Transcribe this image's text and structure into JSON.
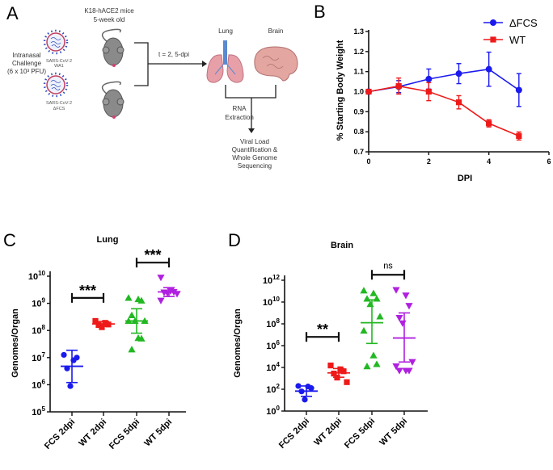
{
  "panel_labels": {
    "a": "A",
    "b": "B",
    "c": "C",
    "d": "D"
  },
  "diagram": {
    "mice_title": "K18-hACE2 mice",
    "mice_age": "5-week old",
    "challenge": [
      "Intranasal",
      "Challenge",
      "(6 x 10³ PFU)"
    ],
    "virus1": [
      "SARS-CoV-2",
      "WA1"
    ],
    "virus2": [
      "SARS-CoV-2",
      "ΔFCS"
    ],
    "timepoints": "t = 2, 5-dpi",
    "organ1": "Lung",
    "organ2": "Brain",
    "step1": [
      "RNA",
      "Extraction"
    ],
    "step2": [
      "Viral Load",
      "Quantification &",
      "Whole Genome",
      "Sequencing"
    ]
  },
  "chart_data": [
    {
      "id": "B",
      "type": "line",
      "title": "",
      "xlabel": "DPI",
      "ylabel": "% Starting Body Weight",
      "xlim": [
        0,
        6
      ],
      "ylim": [
        0.7,
        1.3
      ],
      "xticks": [
        0,
        2,
        4,
        6
      ],
      "yticks": [
        "0.7",
        "0.8",
        "0.9",
        "1.0",
        "1.1",
        "1.2",
        "1.3"
      ],
      "legend_position": "top-right",
      "x": [
        0,
        1,
        2,
        3,
        4,
        5
      ],
      "series": [
        {
          "name": "ΔFCS",
          "color": "#1a1aee",
          "marker": "circle",
          "values": [
            1.0,
            1.025,
            1.063,
            1.09,
            1.112,
            1.008
          ],
          "errors": [
            0.005,
            0.03,
            0.05,
            0.05,
            0.085,
            0.082
          ]
        },
        {
          "name": "WT",
          "color": "#ee1a1a",
          "marker": "square",
          "values": [
            1.0,
            1.028,
            1.0,
            0.947,
            0.842,
            0.779
          ],
          "errors": [
            0.005,
            0.04,
            0.045,
            0.033,
            0.018,
            0.02
          ]
        }
      ]
    },
    {
      "id": "C",
      "type": "scatter",
      "title": "Lung",
      "ylabel": "Genomes/Organ",
      "yscale": "log10",
      "ylim_log10": [
        5,
        10
      ],
      "ytick_exponents": [
        5,
        6,
        7,
        8,
        9,
        10
      ],
      "categories": [
        "FCS 2dpi",
        "WT 2dpi",
        "FCS 5dpi",
        "WT 5dpi"
      ],
      "groups": [
        {
          "color": "#1a1aee",
          "marker": "circle",
          "log10_values": [
            7.1,
            6.9,
            7.0,
            6.6,
            5.95
          ],
          "mean_log10": 6.68,
          "error_log10": [
            6.08,
            7.27
          ]
        },
        {
          "color": "#ee1a1a",
          "marker": "square",
          "log10_values": [
            8.35,
            8.28,
            8.22,
            8.2,
            8.12
          ],
          "mean_log10": 8.24,
          "error_log10": [
            8.15,
            8.33
          ]
        },
        {
          "color": "#22b822",
          "marker": "triangle-up",
          "log10_values": [
            9.2,
            9.15,
            9.1,
            8.56,
            8.35,
            8.35,
            8.35,
            7.72,
            7.7,
            7.3
          ],
          "mean_log10": 8.35,
          "error_log10": [
            7.9,
            8.8
          ]
        },
        {
          "color": "#b020e0",
          "marker": "triangle-down",
          "log10_values": [
            9.95,
            9.45,
            9.42,
            9.4,
            9.38,
            9.35,
            9.1
          ],
          "mean_log10": 9.42,
          "error_log10": [
            9.25,
            9.58
          ]
        }
      ],
      "significance": [
        {
          "between": [
            0,
            1
          ],
          "label": "***",
          "level_log10": 9.2
        },
        {
          "between": [
            2,
            3
          ],
          "label": "***",
          "level_log10": 10.5
        }
      ]
    },
    {
      "id": "D",
      "type": "scatter",
      "title": "Brain",
      "ylabel": "Genomes/Organ",
      "yscale": "log10",
      "ylim_log10": [
        0,
        12
      ],
      "ytick_exponents": [
        0,
        2,
        4,
        6,
        8,
        10,
        12
      ],
      "categories": [
        "FCS 2dpi",
        "WT 2dpi",
        "FCS 5dpi",
        "WT 5dpi"
      ],
      "groups": [
        {
          "color": "#1a1aee",
          "marker": "circle",
          "log10_values": [
            2.3,
            2.25,
            2.1,
            1.8,
            1.05
          ],
          "mean_log10": 1.83,
          "error_log10": [
            1.35,
            2.3
          ]
        },
        {
          "color": "#ee1a1a",
          "marker": "square",
          "log10_values": [
            4.18,
            3.83,
            3.65,
            3.44,
            3.07,
            2.65
          ],
          "mean_log10": 3.5,
          "error_log10": [
            3.1,
            3.9
          ]
        },
        {
          "color": "#22b822",
          "marker": "triangle-up",
          "log10_values": [
            11.05,
            10.8,
            10.3,
            10.3,
            9.8,
            8.67,
            7.37,
            5.1,
            4.3,
            4.1
          ],
          "mean_log10": 8.1,
          "error_log10": [
            6.2,
            10.2
          ]
        },
        {
          "color": "#b020e0",
          "marker": "triangle-down",
          "log10_values": [
            11.1,
            10.6,
            9.65,
            8.55,
            8.05,
            4.5,
            4.1,
            3.7,
            3.7,
            3.7
          ],
          "mean_log10": 6.7,
          "error_log10": [
            4.5,
            9.0
          ]
        }
      ],
      "significance": [
        {
          "between": [
            0,
            1
          ],
          "label": "**",
          "level_log10": 6.8
        },
        {
          "between": [
            2,
            3
          ],
          "label": "ns",
          "level_log10": 12.5
        }
      ]
    }
  ]
}
